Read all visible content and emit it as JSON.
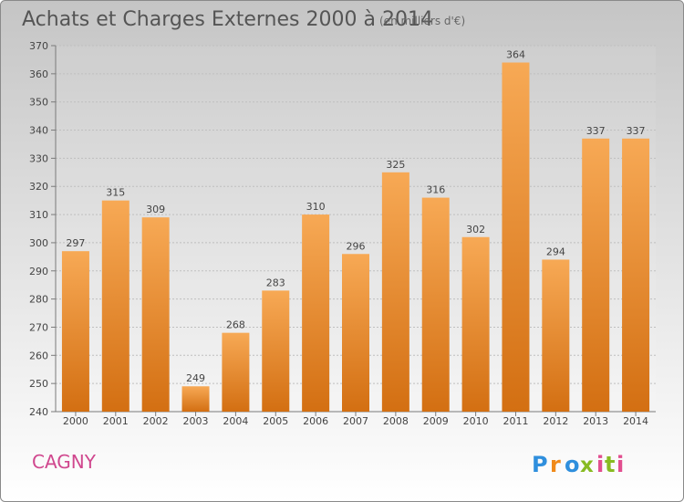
{
  "chart_data": {
    "type": "bar",
    "title": "Achats et Charges Externes 2000 à 2014",
    "subtitle": "(en milliers d'€)",
    "xlabel": "",
    "ylabel": "",
    "ylim": [
      240,
      370
    ],
    "yticks": [
      240,
      250,
      260,
      270,
      280,
      290,
      300,
      310,
      320,
      330,
      340,
      350,
      360,
      370
    ],
    "grid": "horizontal",
    "categories": [
      "2000",
      "2001",
      "2002",
      "2003",
      "2004",
      "2005",
      "2006",
      "2007",
      "2008",
      "2009",
      "2010",
      "2011",
      "2012",
      "2013",
      "2014"
    ],
    "values": [
      297,
      315,
      309,
      249,
      268,
      283,
      310,
      296,
      325,
      316,
      302,
      364,
      294,
      337,
      337
    ]
  },
  "footer": {
    "commune": "CAGNY",
    "brand": "Proxiti"
  },
  "colors": {
    "background_top": "#c5c5c5",
    "background_bottom": "#ffffff",
    "bar_light": "#f7a955",
    "bar_dark": "#d36f12",
    "title_text": "#555555",
    "commune_text": "#d0478e",
    "brand_p": "#2f8fdd",
    "brand_r": "#f08a1a",
    "brand_o": "#2f8fdd",
    "brand_x": "#88bb22",
    "brand_i": "#e24e8f",
    "brand_t": "#88bb22"
  }
}
